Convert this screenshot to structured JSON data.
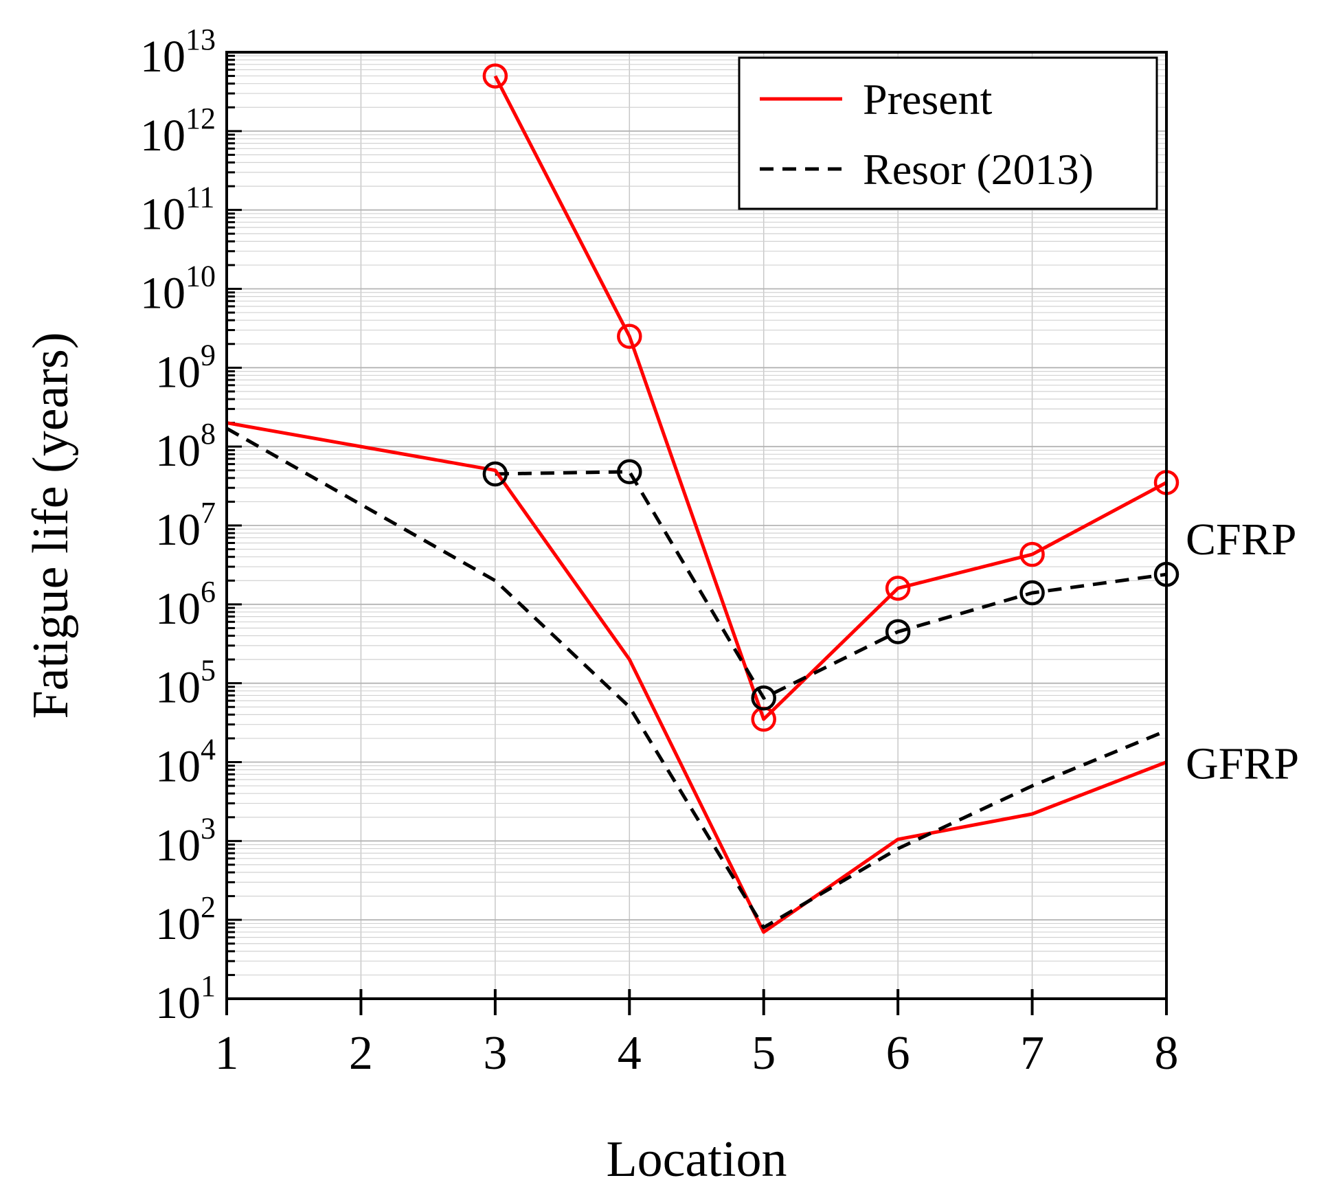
{
  "chart_data": {
    "type": "line",
    "xlabel": "Location",
    "ylabel": "Fatigue life (years)",
    "y_scale": "log",
    "xlim": [
      1,
      8
    ],
    "ylim": [
      10,
      10000000000000
    ],
    "x_ticks": [
      "1",
      "2",
      "3",
      "4",
      "5",
      "6",
      "7",
      "8"
    ],
    "y_ticks": [
      {
        "base": "10",
        "exp": "1",
        "value": 10
      },
      {
        "base": "10",
        "exp": "2",
        "value": 100
      },
      {
        "base": "10",
        "exp": "3",
        "value": 1000
      },
      {
        "base": "10",
        "exp": "4",
        "value": 10000
      },
      {
        "base": "10",
        "exp": "5",
        "value": 100000
      },
      {
        "base": "10",
        "exp": "6",
        "value": 1000000
      },
      {
        "base": "10",
        "exp": "7",
        "value": 10000000
      },
      {
        "base": "10",
        "exp": "8",
        "value": 100000000
      },
      {
        "base": "10",
        "exp": "9",
        "value": 1000000000
      },
      {
        "base": "10",
        "exp": "10",
        "value": 10000000000
      },
      {
        "base": "10",
        "exp": "11",
        "value": 100000000000
      },
      {
        "base": "10",
        "exp": "12",
        "value": 1000000000000
      },
      {
        "base": "10",
        "exp": "13",
        "value": 10000000000000
      }
    ],
    "grid": true,
    "legend": {
      "position": "top-right",
      "entries": [
        {
          "label": "Present",
          "color": "#ff0000",
          "dash": "solid"
        },
        {
          "label": "Resor (2013)",
          "color": "#000000",
          "dash": "dashed"
        }
      ]
    },
    "annotations": [
      {
        "text": "CFRP",
        "x": 8,
        "y": 7000000
      },
      {
        "text": "GFRP",
        "x": 8,
        "y": 10000
      }
    ],
    "series": [
      {
        "group": "CFRP",
        "legend_entry": "Present",
        "color": "#ff0000",
        "dash": "solid",
        "markers": true,
        "points": [
          [
            3,
            5000000000000
          ],
          [
            4,
            2500000000
          ],
          [
            5,
            35000
          ],
          [
            6,
            1600000
          ],
          [
            7,
            4300000
          ],
          [
            8,
            35000000
          ]
        ]
      },
      {
        "group": "CFRP",
        "legend_entry": "Resor (2013)",
        "color": "#000000",
        "dash": "dashed",
        "markers": true,
        "points": [
          [
            3,
            45000000
          ],
          [
            4,
            48000000
          ],
          [
            5,
            65000
          ],
          [
            6,
            450000
          ],
          [
            7,
            1400000
          ],
          [
            8,
            2400000
          ]
        ]
      },
      {
        "group": "GFRP",
        "legend_entry": "Present",
        "color": "#ff0000",
        "dash": "solid",
        "markers": false,
        "points": [
          [
            1,
            200000000
          ],
          [
            3,
            50000000
          ],
          [
            4,
            200000
          ],
          [
            5,
            70
          ],
          [
            6,
            1050
          ],
          [
            7,
            2200
          ],
          [
            8,
            10000
          ]
        ]
      },
      {
        "group": "GFRP",
        "legend_entry": "Resor (2013)",
        "color": "#000000",
        "dash": "dashed",
        "markers": false,
        "points": [
          [
            1,
            170000000
          ],
          [
            3,
            2000000
          ],
          [
            4,
            50000
          ],
          [
            5,
            80
          ],
          [
            6,
            800
          ],
          [
            7,
            5000
          ],
          [
            8,
            25000
          ]
        ]
      }
    ]
  }
}
